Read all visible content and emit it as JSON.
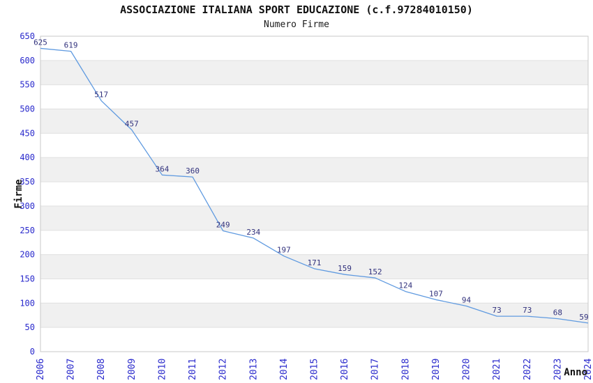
{
  "chart_data": {
    "type": "line",
    "title": "ASSOCIAZIONE ITALIANA SPORT EDUCAZIONE (c.f.97284010150)",
    "subtitle": "Numero Firme",
    "xlabel": "Anno",
    "ylabel": "Firme",
    "categories": [
      2006,
      2007,
      2008,
      2009,
      2010,
      2011,
      2012,
      2013,
      2014,
      2015,
      2016,
      2017,
      2018,
      2019,
      2020,
      2021,
      2022,
      2023,
      2024
    ],
    "values": [
      625,
      619,
      517,
      457,
      364,
      360,
      249,
      234,
      197,
      171,
      159,
      152,
      124,
      107,
      94,
      73,
      73,
      68,
      59
    ],
    "ylim": [
      0,
      650
    ],
    "ytick_step": 50,
    "grid": "horizontal-bands-alternating",
    "legend_position": "none",
    "data_labels_visible": true,
    "colors": {
      "line": "#5f9ae0",
      "tick_label": "#2929cc",
      "data_label": "#32327d",
      "band_fill": "#f0f0f0",
      "gridline": "#e0e0e0",
      "plot_border": "#c8c8c8",
      "title_text": "#111111",
      "axis_title_text": "#111111",
      "background": "#ffffff"
    }
  }
}
